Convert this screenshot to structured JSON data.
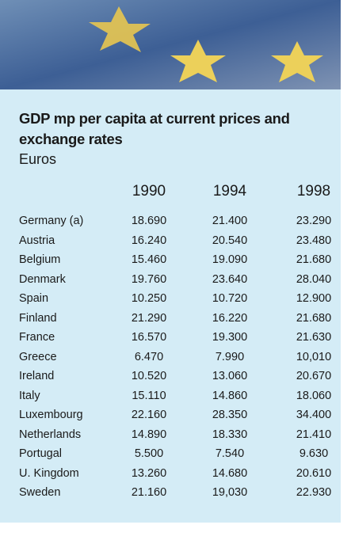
{
  "header": {
    "title": "GDP mp per capita at current prices and exchange rates",
    "unit": "Euros"
  },
  "table": {
    "columns": [
      "1990",
      "1994",
      "1998"
    ],
    "rows": [
      [
        "Germany (a)",
        "18.690",
        "21.400",
        "23.290"
      ],
      [
        "Austria",
        "16.240",
        "20.540",
        "23.480"
      ],
      [
        "Belgium",
        "15.460",
        "19.090",
        "21.680"
      ],
      [
        "Denmark",
        "19.760",
        "23.640",
        "28.040"
      ],
      [
        "Spain",
        "10.250",
        "10.720",
        "12.900"
      ],
      [
        "Finland",
        "21.290",
        "16.220",
        "21.680"
      ],
      [
        "France",
        "16.570",
        "19.300",
        "21.630"
      ],
      [
        "Greece",
        "6.470",
        "7.990",
        "10,010"
      ],
      [
        "Ireland",
        "10.520",
        "13.060",
        "20.670"
      ],
      [
        "Italy",
        "15.110",
        "14.860",
        "18.060"
      ],
      [
        "Luxembourg",
        "22.160",
        "28.350",
        "34.400"
      ],
      [
        "Netherlands",
        "14.890",
        "18.330",
        "21.410"
      ],
      [
        "Portugal",
        "5.500",
        "7.540",
        "9.630"
      ],
      [
        "U. Kingdom",
        "13.260",
        "14.680",
        "20.610"
      ],
      [
        "Sweden",
        "21.160",
        "19,030",
        "22.930"
      ]
    ]
  }
}
